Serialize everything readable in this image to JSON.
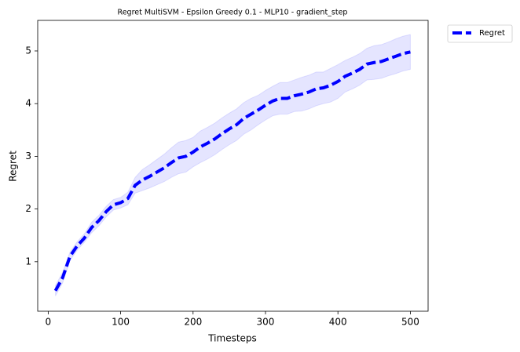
{
  "chart_data": {
    "type": "line",
    "title": "Regret MultiSVM - Epsilon Greedy 0.1 - MLP10 - gradient_step",
    "xlabel": "Timesteps",
    "ylabel": "Regret",
    "x": [
      10,
      20,
      30,
      40,
      50,
      60,
      70,
      80,
      90,
      100,
      110,
      120,
      130,
      140,
      150,
      160,
      170,
      180,
      190,
      200,
      210,
      220,
      230,
      240,
      250,
      260,
      270,
      280,
      290,
      300,
      310,
      320,
      330,
      340,
      350,
      360,
      370,
      380,
      390,
      400,
      410,
      420,
      430,
      440,
      450,
      460,
      470,
      480,
      490,
      500
    ],
    "series": [
      {
        "name": "Regret",
        "color": "#0000ff",
        "band_color": "#0000ff",
        "values": [
          0.45,
          0.7,
          1.1,
          1.3,
          1.45,
          1.65,
          1.78,
          1.95,
          2.08,
          2.12,
          2.2,
          2.45,
          2.55,
          2.62,
          2.7,
          2.78,
          2.88,
          2.97,
          3.0,
          3.08,
          3.18,
          3.25,
          3.33,
          3.43,
          3.52,
          3.6,
          3.72,
          3.8,
          3.88,
          3.97,
          4.05,
          4.1,
          4.1,
          4.15,
          4.18,
          4.22,
          4.28,
          4.3,
          4.35,
          4.42,
          4.52,
          4.58,
          4.65,
          4.75,
          4.78,
          4.8,
          4.85,
          4.9,
          4.95,
          4.98
        ],
        "lower": [
          0.35,
          0.6,
          1.02,
          1.22,
          1.37,
          1.55,
          1.68,
          1.85,
          1.98,
          2.02,
          2.08,
          2.3,
          2.35,
          2.4,
          2.46,
          2.52,
          2.6,
          2.67,
          2.7,
          2.8,
          2.88,
          2.95,
          3.03,
          3.13,
          3.22,
          3.3,
          3.42,
          3.5,
          3.6,
          3.69,
          3.77,
          3.8,
          3.8,
          3.85,
          3.86,
          3.9,
          3.96,
          4.0,
          4.03,
          4.1,
          4.22,
          4.28,
          4.35,
          4.45,
          4.46,
          4.48,
          4.53,
          4.57,
          4.62,
          4.65
        ],
        "upper": [
          0.55,
          0.8,
          1.18,
          1.38,
          1.53,
          1.75,
          1.88,
          2.05,
          2.18,
          2.22,
          2.32,
          2.6,
          2.75,
          2.84,
          2.94,
          3.04,
          3.16,
          3.27,
          3.3,
          3.36,
          3.48,
          3.55,
          3.63,
          3.73,
          3.82,
          3.9,
          4.02,
          4.1,
          4.16,
          4.25,
          4.33,
          4.4,
          4.4,
          4.45,
          4.5,
          4.54,
          4.6,
          4.6,
          4.67,
          4.74,
          4.82,
          4.88,
          4.95,
          5.05,
          5.1,
          5.12,
          5.17,
          5.23,
          5.28,
          5.31
        ]
      }
    ],
    "xlim": [
      -14.5,
      524.5
    ],
    "xticks": [
      0,
      100,
      200,
      300,
      400,
      500
    ],
    "ylim": [
      0.06,
      5.58
    ],
    "yticks": [
      1,
      2,
      3,
      4,
      5
    ],
    "legend": "outside upper right"
  }
}
